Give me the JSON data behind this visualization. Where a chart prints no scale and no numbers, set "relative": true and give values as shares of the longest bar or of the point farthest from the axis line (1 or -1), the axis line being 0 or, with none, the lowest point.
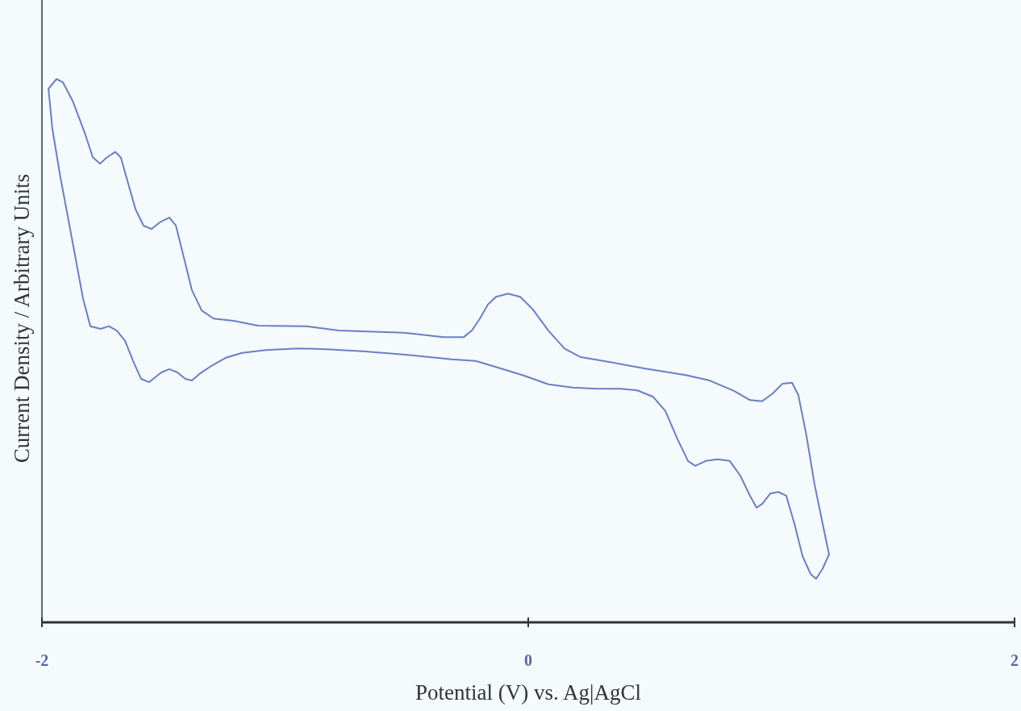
{
  "chart_data": {
    "type": "line",
    "xlabel": "Potential (V) vs. Ag|AgCl",
    "ylabel": "Current Density / Arbitrary Units",
    "relative": true,
    "xlim": [
      -2,
      2
    ],
    "xticks": [
      -2,
      0,
      2
    ],
    "grid": false,
    "marker": "none",
    "line_style": "solid",
    "series": [
      {
        "color": "#6a7fc4",
        "x": [
          -1.973,
          -1.94,
          -1.914,
          -1.874,
          -1.824,
          -1.791,
          -1.761,
          -1.735,
          -1.698,
          -1.675,
          -1.648,
          -1.615,
          -1.582,
          -1.549,
          -1.516,
          -1.476,
          -1.449,
          -1.416,
          -1.383,
          -1.343,
          -1.294,
          -1.211,
          -1.111,
          -0.912,
          -0.779,
          -0.514,
          -0.348,
          -0.265,
          -0.232,
          -0.199,
          -0.166,
          -0.133,
          -0.083,
          -0.033,
          0.017,
          0.083,
          0.149,
          0.216,
          0.348,
          0.481,
          0.647,
          0.746,
          0.846,
          0.912,
          0.962,
          1.005,
          1.045,
          1.085,
          1.111,
          1.144,
          1.177,
          1.211,
          1.237
        ],
        "values": [
          0.982,
          1,
          0.994,
          0.96,
          0.901,
          0.856,
          0.844,
          0.855,
          0.866,
          0.855,
          0.812,
          0.76,
          0.73,
          0.724,
          0.736,
          0.745,
          0.73,
          0.671,
          0.611,
          0.574,
          0.559,
          0.555,
          0.546,
          0.545,
          0.537,
          0.533,
          0.525,
          0.525,
          0.537,
          0.559,
          0.585,
          0.599,
          0.605,
          0.599,
          0.577,
          0.537,
          0.504,
          0.488,
          0.478,
          0.467,
          0.455,
          0.445,
          0.426,
          0.409,
          0.407,
          0.421,
          0.439,
          0.441,
          0.418,
          0.344,
          0.255,
          0.181,
          0.125
        ]
      },
      {
        "color": "#6a7fc4",
        "x": [
          -1.973,
          -1.957,
          -1.924,
          -1.874,
          -1.831,
          -1.801,
          -1.758,
          -1.725,
          -1.692,
          -1.658,
          -1.625,
          -1.592,
          -1.559,
          -1.509,
          -1.476,
          -1.443,
          -1.41,
          -1.383,
          -1.35,
          -1.31,
          -1.244,
          -1.177,
          -1.078,
          -0.945,
          -0.846,
          -0.68,
          -0.514,
          -0.315,
          -0.216,
          -0.133,
          -0.017,
          0.083,
          0.182,
          0.282,
          0.381,
          0.448,
          0.514,
          0.564,
          0.614,
          0.657,
          0.687,
          0.73,
          0.779,
          0.829,
          0.872,
          0.912,
          0.939,
          0.962,
          0.995,
          1.028,
          1.061,
          1.095,
          1.128,
          1.161,
          1.184,
          1.211,
          1.237
        ],
        "values": [
          0.982,
          0.908,
          0.819,
          0.7,
          0.596,
          0.545,
          0.54,
          0.545,
          0.537,
          0.518,
          0.481,
          0.448,
          0.442,
          0.46,
          0.466,
          0.46,
          0.448,
          0.445,
          0.458,
          0.47,
          0.487,
          0.496,
          0.501,
          0.504,
          0.503,
          0.499,
          0.493,
          0.484,
          0.481,
          0.47,
          0.454,
          0.438,
          0.432,
          0.43,
          0.43,
          0.427,
          0.415,
          0.389,
          0.337,
          0.297,
          0.288,
          0.297,
          0.3,
          0.297,
          0.27,
          0.233,
          0.211,
          0.218,
          0.237,
          0.24,
          0.233,
          0.181,
          0.122,
          0.089,
          0.08,
          0.099,
          0.125
        ]
      }
    ]
  }
}
